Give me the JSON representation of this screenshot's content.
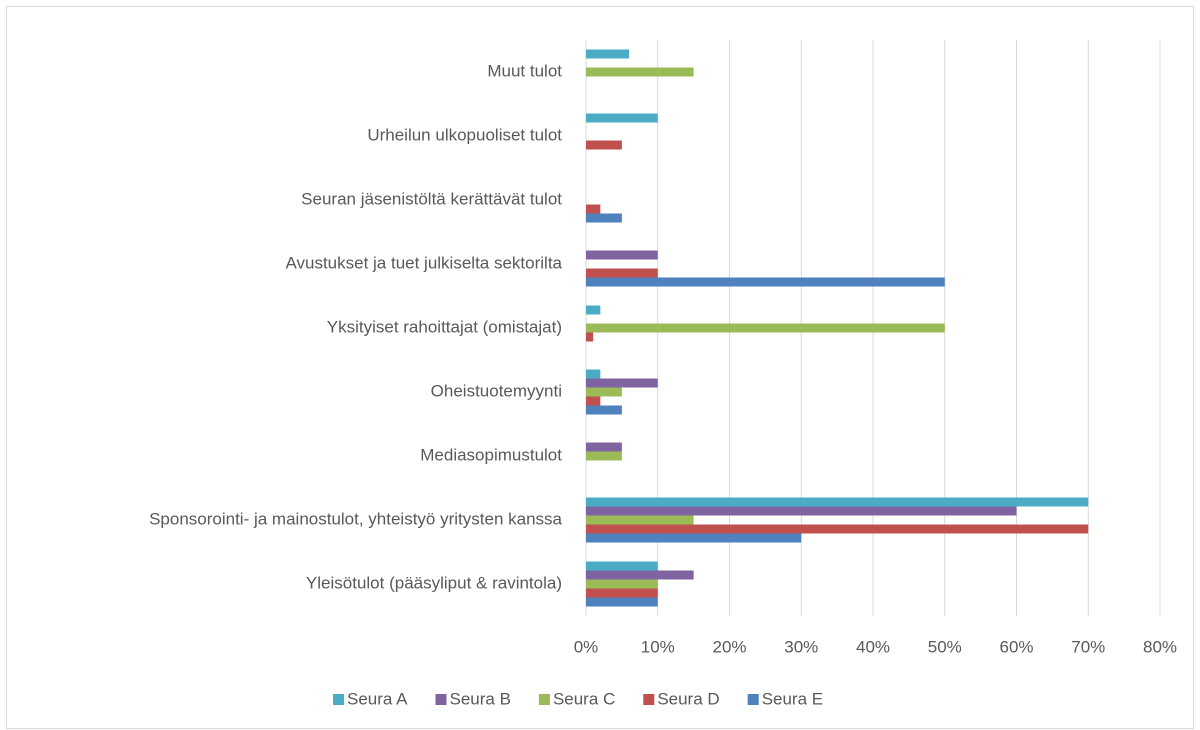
{
  "chart_data": {
    "type": "bar",
    "orientation": "horizontal",
    "categories": [
      "Muut tulot",
      "Urheilun ulkopuoliset tulot",
      "Seuran jäsenistöltä kerättävät tulot",
      "Avustukset ja tuet julkiselta sektorilta",
      "Yksityiset rahoittajat (omistajat)",
      "Oheistuotemyynti",
      "Mediasopimustulot",
      "Sponsorointi- ja mainostulot, yhteistyö yritysten kanssa",
      "Yleisötulot (pääsyliput & ravintola)"
    ],
    "series": [
      {
        "name": "Seura A",
        "color": "#4bacc6",
        "values": [
          6,
          10,
          0,
          0,
          2,
          2,
          0,
          70,
          10
        ]
      },
      {
        "name": "Seura B",
        "color": "#8064a2",
        "values": [
          0,
          0,
          0,
          10,
          0,
          10,
          5,
          60,
          15
        ]
      },
      {
        "name": "Seura C",
        "color": "#9bbb59",
        "values": [
          15,
          0,
          0,
          0,
          50,
          5,
          5,
          15,
          10
        ]
      },
      {
        "name": "Seura D",
        "color": "#c0504d",
        "values": [
          0,
          5,
          2,
          10,
          1,
          2,
          0,
          70,
          10
        ]
      },
      {
        "name": "Seura E",
        "color": "#4f81bd",
        "values": [
          0,
          0,
          5,
          50,
          0,
          5,
          0,
          30,
          10
        ]
      }
    ],
    "xlim": [
      0,
      80
    ],
    "xticks": [
      {
        "value": 0,
        "label": "0%"
      },
      {
        "value": 10,
        "label": "10%"
      },
      {
        "value": 20,
        "label": "20%"
      },
      {
        "value": 30,
        "label": "30%"
      },
      {
        "value": 40,
        "label": "40%"
      },
      {
        "value": 50,
        "label": "50%"
      },
      {
        "value": 60,
        "label": "60%"
      },
      {
        "value": 70,
        "label": "70%"
      },
      {
        "value": 80,
        "label": "80%"
      }
    ],
    "grid": true,
    "legend": "bottom"
  }
}
